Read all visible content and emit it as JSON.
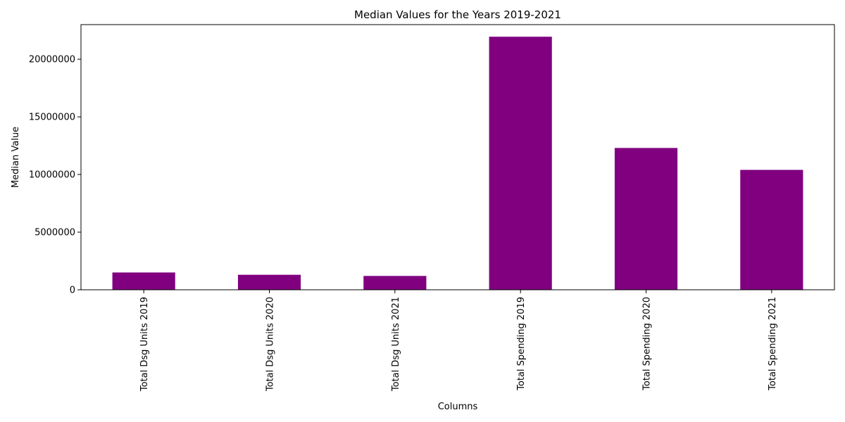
{
  "chart_data": {
    "type": "bar",
    "title": "Median Values for the Years 2019-2021",
    "xlabel": "Columns",
    "ylabel": "Median Value",
    "categories": [
      "Total Dsg Units 2019",
      "Total Dsg Units 2020",
      "Total Dsg Units 2021",
      "Total Spending 2019",
      "Total Spending 2020",
      "Total Spending 2021"
    ],
    "values": [
      1500000,
      1300000,
      1200000,
      21950000,
      12300000,
      10400000
    ],
    "ylim": [
      0,
      23000000
    ],
    "yticks": [
      0,
      5000000,
      10000000,
      15000000,
      20000000
    ],
    "ytick_labels": [
      "0",
      "5000000",
      "10000000",
      "15000000",
      "20000000"
    ],
    "bar_color": "#800080",
    "grid": false
  }
}
